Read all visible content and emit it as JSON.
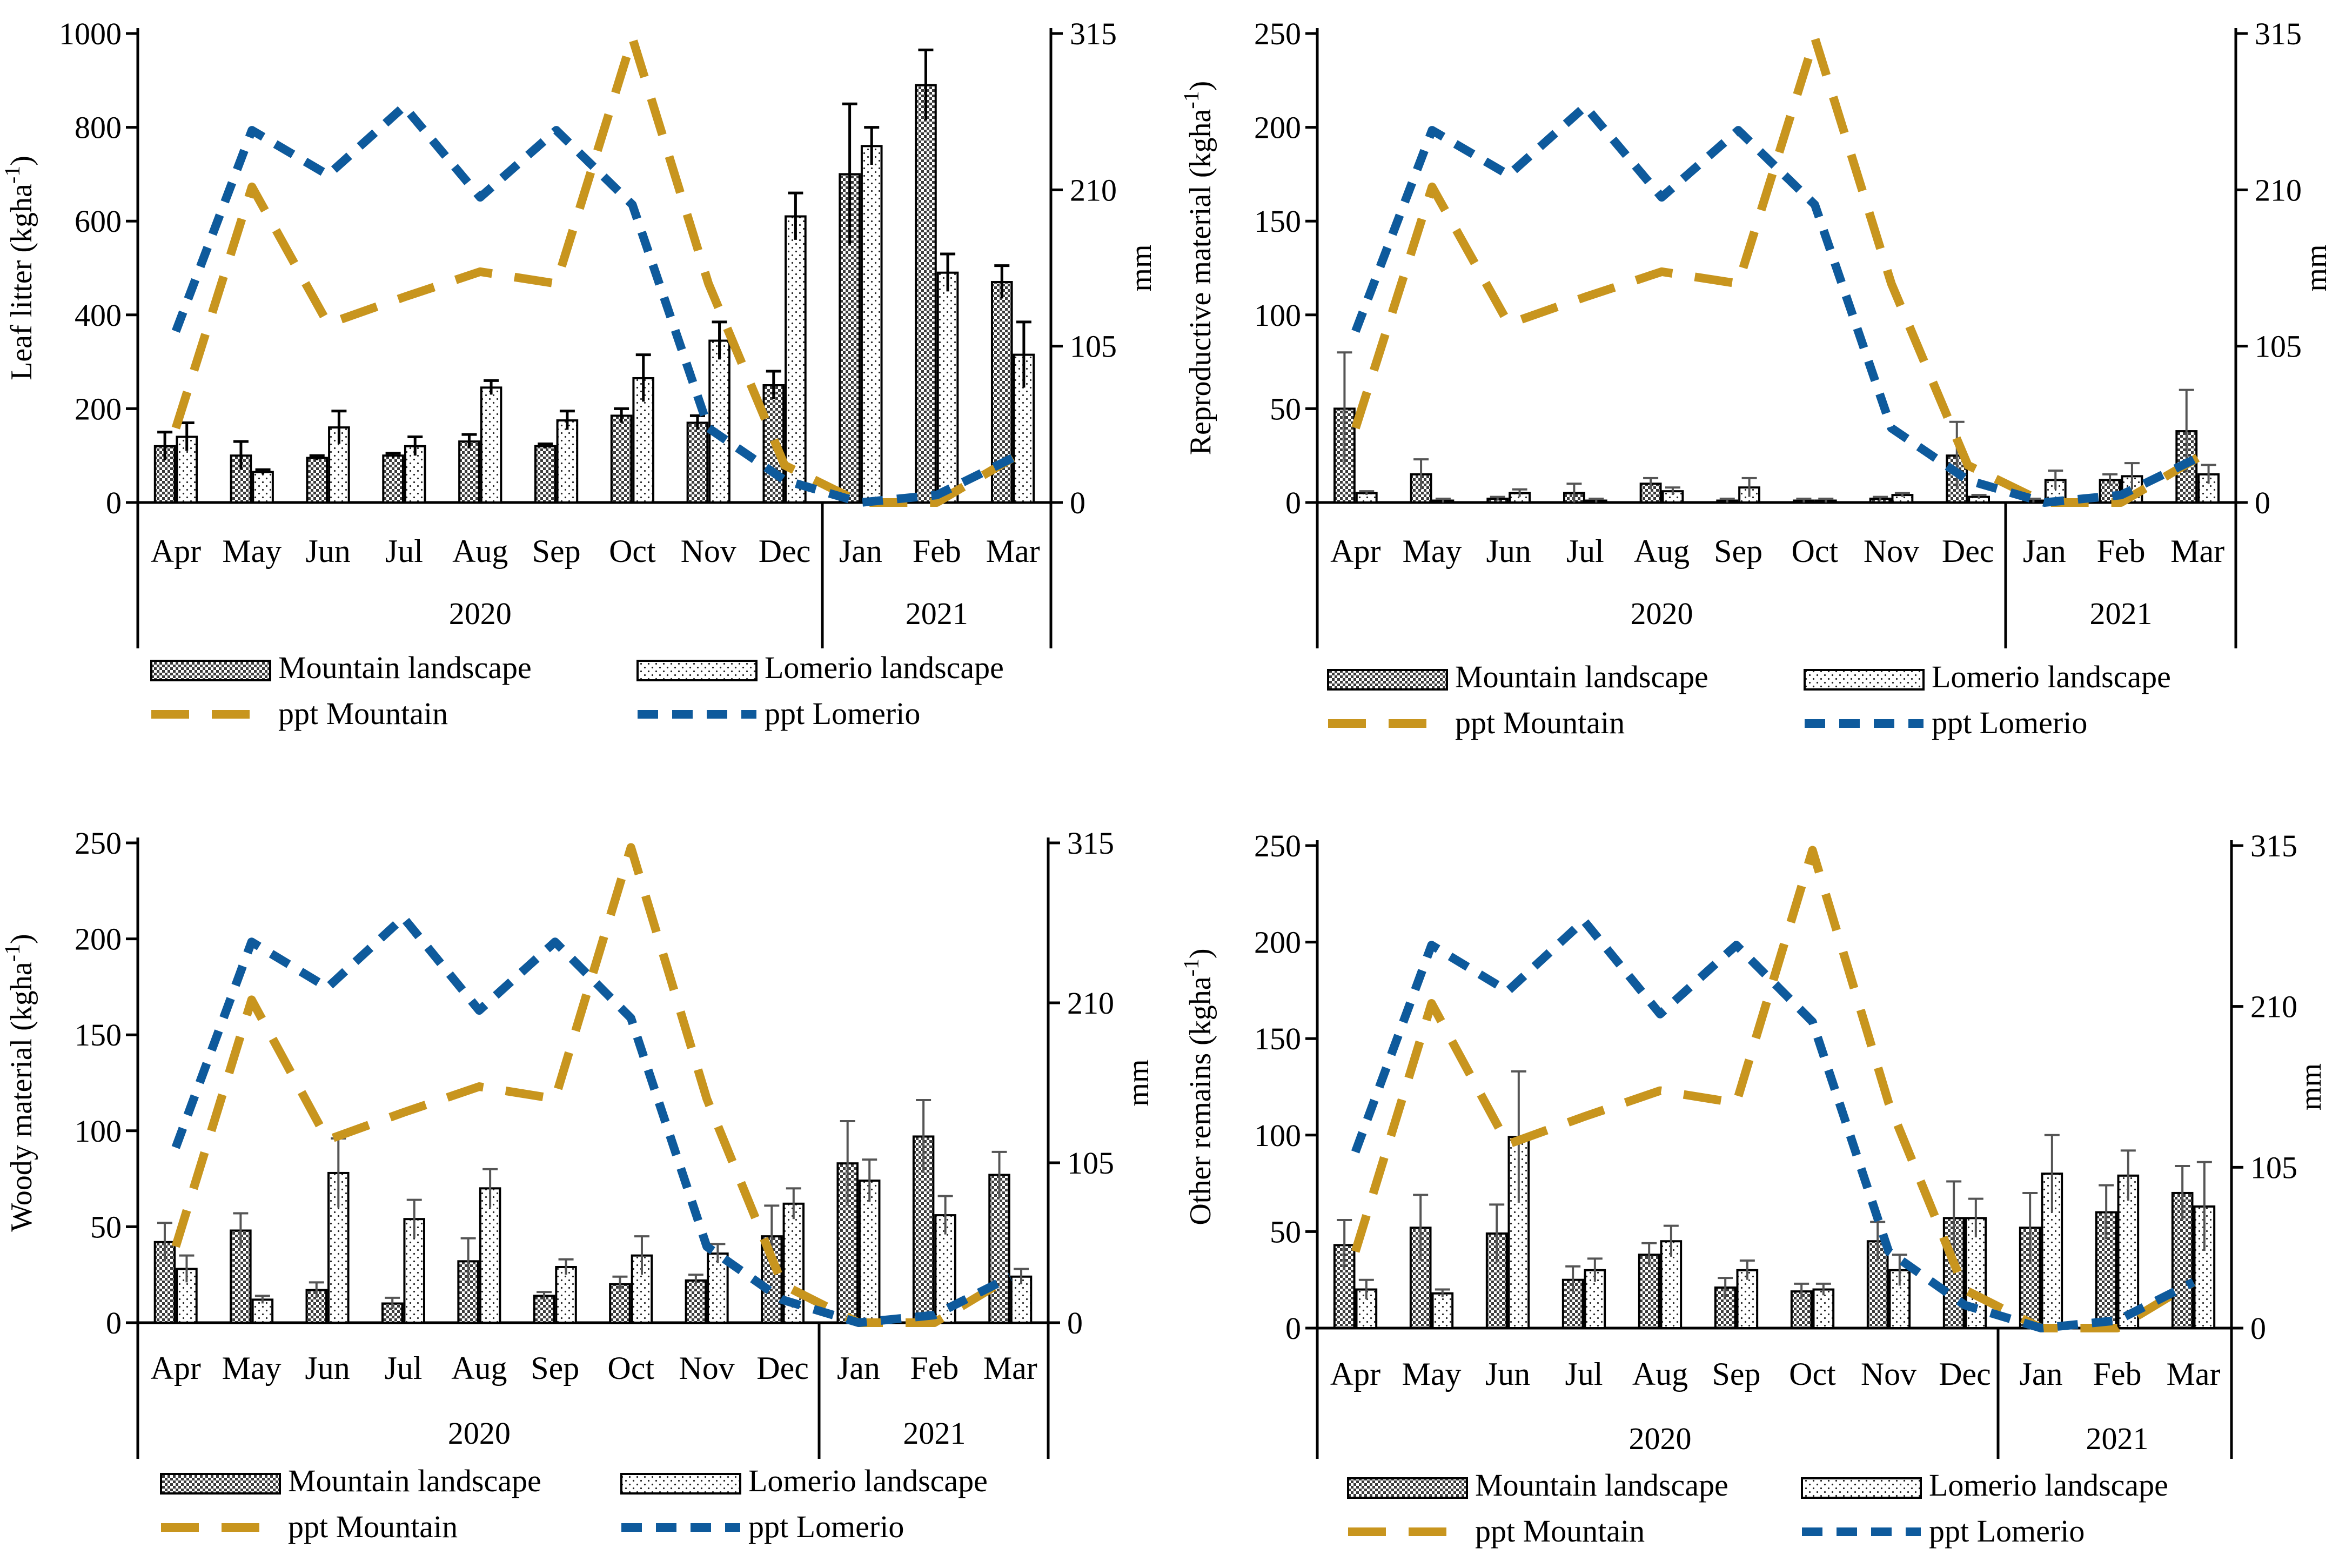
{
  "colors": {
    "ppt_mountain": "#C8951E",
    "ppt_lomerio": "#0E5A9C",
    "error_bar_dark": "#000000",
    "error_bar_grey": "#555555"
  },
  "legend": {
    "mountain": "Mountain landscape",
    "lomerio": "Lomerio landscape",
    "ppt_mountain": "ppt Mountain",
    "ppt_lomerio": "ppt Lomerio"
  },
  "chart_data": [
    {
      "type": "bar",
      "panel": "top-left",
      "ylabel": "Leaf litter (kgha",
      "ylabel_sup": "-1",
      "ylabel_close": ")",
      "y2label": "mm",
      "ylim": [
        0,
        1000
      ],
      "yticks": [
        0,
        200,
        400,
        600,
        800,
        1000
      ],
      "y2lim": [
        0,
        315
      ],
      "y2ticks": [
        0,
        105,
        210,
        315
      ],
      "categories": [
        "Apr",
        "May",
        "Jun",
        "Jul",
        "Aug",
        "Sep",
        "Oct",
        "Nov",
        "Dec",
        "Jan",
        "Feb",
        "Mar"
      ],
      "years": [
        {
          "label": "2020",
          "from": 0,
          "to": 8
        },
        {
          "label": "2021",
          "from": 9,
          "to": 11
        }
      ],
      "series": [
        {
          "name": "Mountain landscape",
          "values": [
            120,
            100,
            95,
            100,
            130,
            120,
            185,
            170,
            250,
            700,
            890,
            470
          ],
          "errors": [
            30,
            30,
            5,
            5,
            15,
            5,
            15,
            15,
            30,
            150,
            75,
            35
          ]
        },
        {
          "name": "Lomerio landscape",
          "values": [
            140,
            65,
            160,
            120,
            245,
            175,
            265,
            345,
            610,
            760,
            490,
            315
          ],
          "errors": [
            30,
            5,
            35,
            20,
            15,
            20,
            50,
            40,
            50,
            40,
            40,
            70
          ]
        }
      ],
      "lines": [
        {
          "name": "ppt Mountain",
          "values": [
            50,
            212,
            120,
            138,
            155,
            147,
            312,
            147,
            25,
            0,
            0,
            30
          ]
        },
        {
          "name": "ppt Lomerio",
          "values": [
            115,
            250,
            220,
            266,
            205,
            250,
            200,
            50,
            15,
            0,
            5,
            30
          ]
        }
      ]
    },
    {
      "type": "bar",
      "panel": "top-right",
      "ylabel": "Reproductive material (kgha",
      "ylabel_sup": "-1",
      "ylabel_close": ")",
      "y2label": "mm",
      "ylim": [
        0,
        250
      ],
      "yticks": [
        0,
        50,
        100,
        150,
        200,
        250
      ],
      "y2lim": [
        0,
        315
      ],
      "y2ticks": [
        0,
        105,
        210,
        315
      ],
      "categories": [
        "Apr",
        "May",
        "Jun",
        "Jul",
        "Aug",
        "Sep",
        "Oct",
        "Nov",
        "Dec",
        "Jan",
        "Feb",
        "Mar"
      ],
      "years": [
        {
          "label": "2020",
          "from": 0,
          "to": 8
        },
        {
          "label": "2021",
          "from": 9,
          "to": 11
        }
      ],
      "series": [
        {
          "name": "Mountain landscape",
          "values": [
            50,
            15,
            2,
            5,
            10,
            1,
            1,
            2,
            25,
            1,
            12,
            38
          ],
          "errors": [
            30,
            8,
            1,
            5,
            3,
            1,
            1,
            1,
            18,
            1,
            3,
            22
          ]
        },
        {
          "name": "Lomerio landscape",
          "values": [
            5,
            1,
            5,
            1,
            6,
            8,
            1,
            4,
            3,
            12,
            14,
            15
          ],
          "errors": [
            1,
            1,
            2,
            1,
            2,
            5,
            1,
            1,
            1,
            5,
            7,
            5
          ]
        }
      ],
      "lines": [
        {
          "name": "ppt Mountain",
          "values": [
            50,
            212,
            120,
            138,
            155,
            147,
            312,
            147,
            25,
            0,
            0,
            30
          ]
        },
        {
          "name": "ppt Lomerio",
          "values": [
            115,
            250,
            220,
            266,
            205,
            250,
            200,
            50,
            15,
            0,
            5,
            30
          ]
        }
      ]
    },
    {
      "type": "bar",
      "panel": "bottom-left",
      "ylabel": "Woody material (kgha",
      "ylabel_sup": "-1",
      "ylabel_close": ")",
      "y2label": "mm",
      "ylim": [
        0,
        250
      ],
      "yticks": [
        0,
        50,
        100,
        150,
        200,
        250
      ],
      "y2lim": [
        0,
        315
      ],
      "y2ticks": [
        0,
        105,
        210,
        315
      ],
      "categories": [
        "Apr",
        "May",
        "Jun",
        "Jul",
        "Aug",
        "Sep",
        "Oct",
        "Nov",
        "Dec",
        "Jan",
        "Feb",
        "Mar"
      ],
      "years": [
        {
          "label": "2020",
          "from": 0,
          "to": 8
        },
        {
          "label": "2021",
          "from": 9,
          "to": 11
        }
      ],
      "series": [
        {
          "name": "Mountain landscape",
          "values": [
            42,
            48,
            17,
            10,
            32,
            14,
            20,
            22,
            45,
            83,
            97,
            77
          ],
          "errors": [
            10,
            9,
            4,
            3,
            12,
            2,
            4,
            3,
            16,
            22,
            19,
            12
          ]
        },
        {
          "name": "Lomerio landscape",
          "values": [
            28,
            12,
            78,
            54,
            70,
            29,
            35,
            36,
            62,
            74,
            56,
            24
          ],
          "errors": [
            7,
            2,
            18,
            10,
            10,
            4,
            10,
            5,
            8,
            11,
            10,
            4
          ]
        }
      ],
      "lines": [
        {
          "name": "ppt Mountain",
          "values": [
            50,
            212,
            120,
            138,
            155,
            147,
            312,
            147,
            25,
            0,
            0,
            30
          ]
        },
        {
          "name": "ppt Lomerio",
          "values": [
            115,
            250,
            220,
            266,
            205,
            250,
            200,
            50,
            15,
            0,
            5,
            30
          ]
        }
      ]
    },
    {
      "type": "bar",
      "panel": "bottom-right",
      "ylabel": "Other remains (kgha",
      "ylabel_sup": "-1",
      "ylabel_close": ")",
      "y2label": "mm",
      "ylim": [
        0,
        250
      ],
      "yticks": [
        0,
        50,
        100,
        150,
        200,
        250
      ],
      "y2lim": [
        0,
        315
      ],
      "y2ticks": [
        0,
        105,
        210,
        315
      ],
      "categories": [
        "Apr",
        "May",
        "Jun",
        "Jul",
        "Aug",
        "Sep",
        "Oct",
        "Nov",
        "Dec",
        "Jan",
        "Feb",
        "Mar"
      ],
      "years": [
        {
          "label": "2020",
          "from": 0,
          "to": 8
        },
        {
          "label": "2021",
          "from": 9,
          "to": 11
        }
      ],
      "series": [
        {
          "name": "Mountain landscape",
          "values": [
            43,
            52,
            49,
            25,
            38,
            21,
            19,
            45,
            57,
            52,
            60,
            70
          ],
          "errors": [
            13,
            17,
            15,
            7,
            6,
            5,
            4,
            10,
            19,
            18,
            14,
            14
          ]
        },
        {
          "name": "Lomerio landscape",
          "values": [
            20,
            18,
            99,
            30,
            45,
            30,
            20,
            30,
            57,
            80,
            79,
            63
          ],
          "errors": [
            5,
            2,
            34,
            6,
            8,
            5,
            3,
            8,
            10,
            20,
            13,
            23
          ]
        }
      ],
      "lines": [
        {
          "name": "ppt Mountain",
          "values": [
            50,
            212,
            120,
            138,
            155,
            147,
            312,
            147,
            25,
            0,
            0,
            30
          ]
        },
        {
          "name": "ppt Lomerio",
          "values": [
            115,
            250,
            220,
            266,
            205,
            250,
            200,
            50,
            15,
            0,
            5,
            30
          ]
        }
      ]
    }
  ]
}
